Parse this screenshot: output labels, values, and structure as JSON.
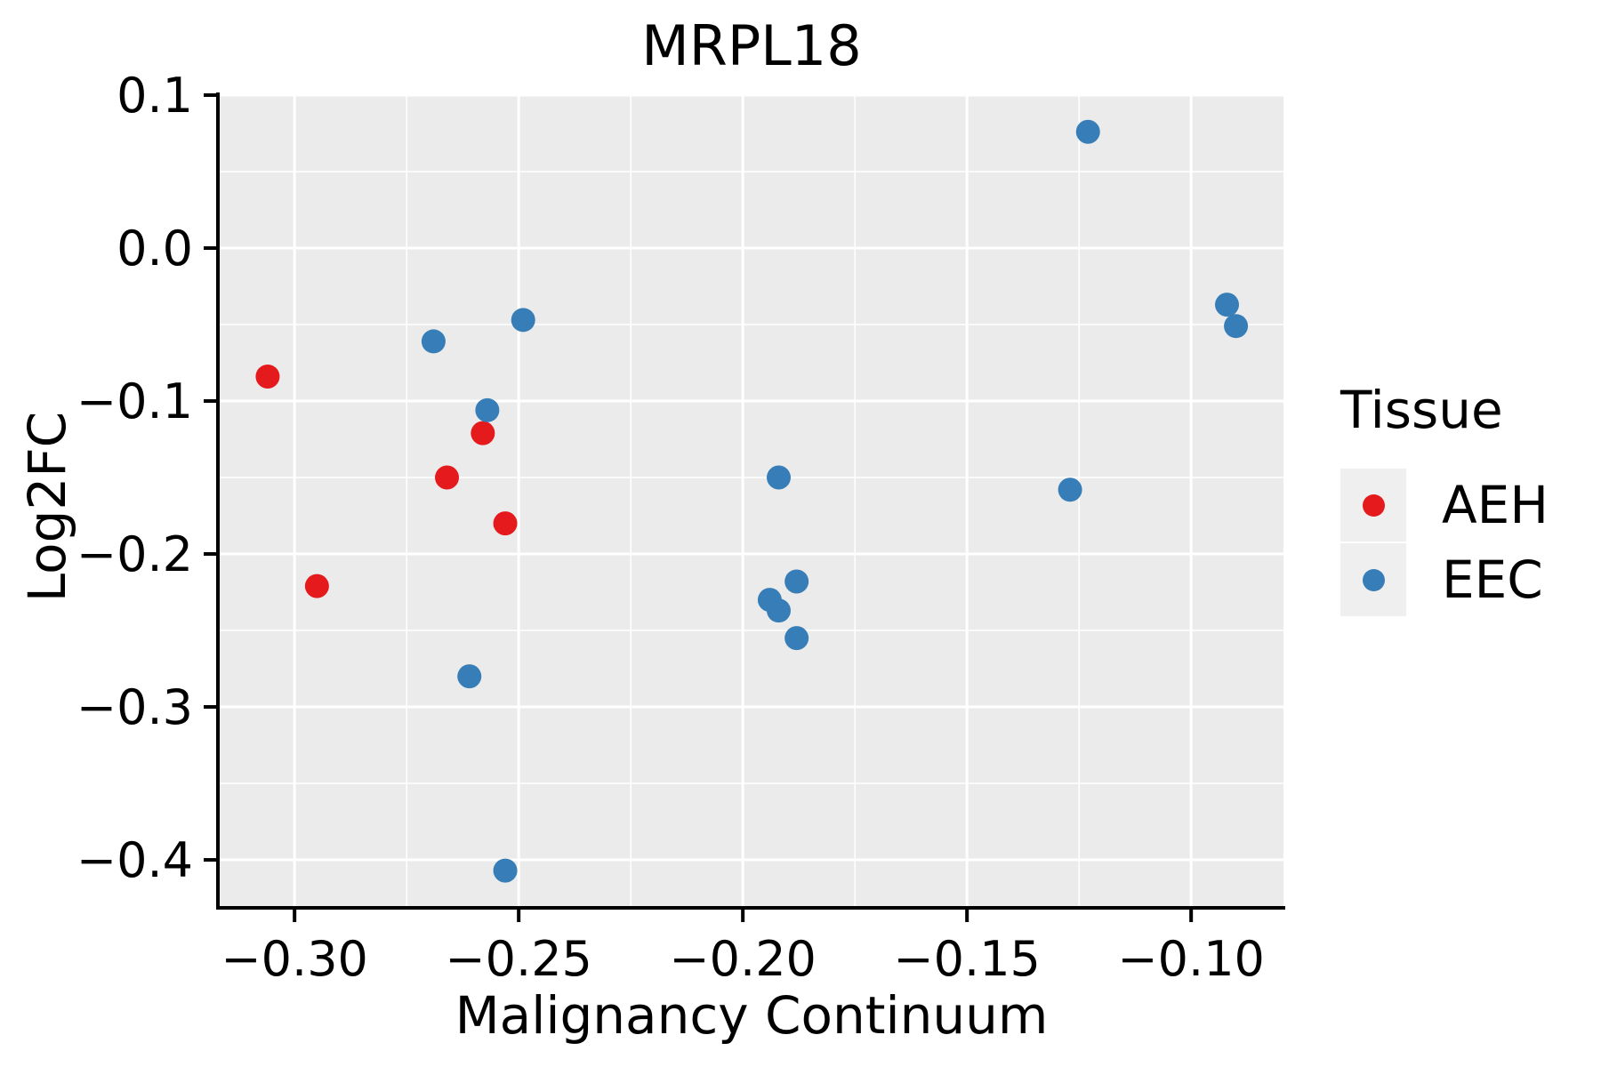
{
  "title": "MRPL18",
  "legend": {
    "title": "Tissue",
    "items": [
      {
        "label": "AEH",
        "color": "#E41A1C"
      },
      {
        "label": "EEC",
        "color": "#377EB8"
      }
    ]
  },
  "colors": {
    "aeh_red": "#E41A1C",
    "eec_blue": "#377EB8",
    "panel_background": "#EBEBEB",
    "gridline": "#FFFFFF",
    "legend_key_background": "#EFEFEF",
    "axis_line": "#000000",
    "text": "#000000"
  },
  "chart_data": {
    "type": "scatter",
    "title": "MRPL18",
    "xlabel": "Malignancy Continuum",
    "ylabel": "Log2FC",
    "legend_title": "Tissue",
    "legend_position": "right",
    "grid": true,
    "xlim": [
      -0.3167,
      -0.0794
    ],
    "ylim": [
      -0.4302,
      0.0994
    ],
    "x_ticks": {
      "values": [
        -0.3,
        -0.25,
        -0.2,
        -0.15,
        -0.1
      ],
      "labels": [
        "−0.30",
        "−0.25",
        "−0.20",
        "−0.15",
        "−0.10"
      ]
    },
    "y_ticks": {
      "values": [
        0.1,
        0.0,
        -0.1,
        -0.2,
        -0.3,
        -0.4
      ],
      "labels": [
        "0.1",
        "0.0",
        "−0.1",
        "−0.2",
        "−0.3",
        "−0.4"
      ]
    },
    "x_minor": [
      -0.275,
      -0.225,
      -0.175,
      -0.125
    ],
    "y_minor": [
      0.05,
      -0.05,
      -0.15,
      -0.25,
      -0.35
    ],
    "point_radius": 13.5,
    "series": [
      {
        "name": "AEH",
        "color": "#E41A1C",
        "points": [
          [
            -0.306,
            -0.084
          ],
          [
            -0.295,
            -0.221
          ],
          [
            -0.266,
            -0.15
          ],
          [
            -0.258,
            -0.121
          ],
          [
            -0.253,
            -0.18
          ]
        ]
      },
      {
        "name": "EEC",
        "color": "#377EB8",
        "points": [
          [
            -0.269,
            -0.061
          ],
          [
            -0.249,
            -0.047
          ],
          [
            -0.257,
            -0.106
          ],
          [
            -0.261,
            -0.28
          ],
          [
            -0.253,
            -0.407
          ],
          [
            -0.192,
            -0.15
          ],
          [
            -0.194,
            -0.23
          ],
          [
            -0.192,
            -0.237
          ],
          [
            -0.188,
            -0.218
          ],
          [
            -0.188,
            -0.255
          ],
          [
            -0.123,
            0.076
          ],
          [
            -0.127,
            -0.158
          ],
          [
            -0.092,
            -0.037
          ],
          [
            -0.09,
            -0.051
          ]
        ]
      }
    ]
  }
}
